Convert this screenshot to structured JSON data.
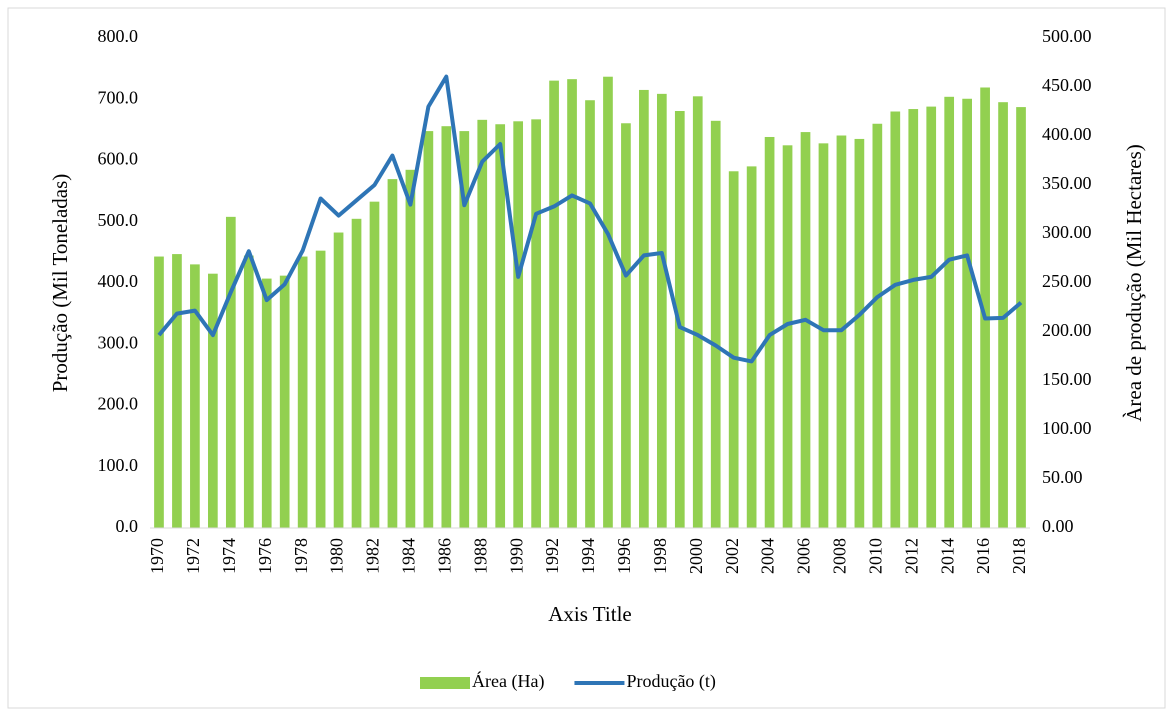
{
  "chart_data": {
    "type": "combo",
    "x_label": "Axis Title",
    "y_label": "Produção (Mil Toneladas)",
    "y2_label": "Àrea de produção (Mil Hectares)",
    "categories": [
      "1970",
      null,
      "1972",
      null,
      "1974",
      null,
      "1976",
      null,
      "1978",
      null,
      "1980",
      null,
      "1982",
      null,
      "1984",
      null,
      "1986",
      null,
      "1988",
      null,
      "1990",
      null,
      "1992",
      null,
      "1994",
      null,
      "1996",
      null,
      "1998",
      null,
      "2000",
      null,
      "2002",
      null,
      "2004",
      null,
      "2006",
      null,
      "2008",
      null,
      "2010",
      null,
      "2012",
      null,
      "2014",
      null,
      "2016",
      null,
      "2018"
    ],
    "series": [
      {
        "name": "Área (Ha)",
        "type": "bar",
        "axis": "y2",
        "color": "#92d050",
        "values": [
          277,
          279.5,
          269,
          259.5,
          317.5,
          278,
          254.5,
          257.5,
          277,
          283,
          301.5,
          315.5,
          333,
          356,
          365.5,
          405,
          410,
          405,
          416.5,
          412,
          415,
          417,
          456.5,
          458,
          436.5,
          460.5,
          413,
          447,
          443,
          425.5,
          440.5,
          415.5,
          364,
          369,
          399,
          390.5,
          404,
          392.5,
          400.5,
          397,
          412.5,
          425,
          427.5,
          430,
          440,
          438,
          449.5,
          434.5,
          429.5
        ]
      },
      {
        "name": "Produção (t)",
        "type": "line",
        "axis": "y",
        "color": "#2e75b6",
        "values": [
          315,
          350,
          355,
          315,
          385,
          452,
          372,
          398,
          453,
          538,
          510,
          535,
          560,
          608,
          528,
          688,
          737,
          527,
          598,
          627,
          410,
          513,
          525,
          543,
          530,
          480,
          412,
          445,
          449,
          328,
          315,
          298,
          278,
          272,
          315,
          333,
          340,
          323,
          323,
          348,
          377,
          397,
          405,
          410,
          438,
          445,
          342,
          343,
          368
        ]
      }
    ],
    "ylim": [
      0,
      800
    ],
    "yticks": [
      {
        "value": 0,
        "label": "0.0"
      },
      {
        "value": 100,
        "label": "100.0"
      },
      {
        "value": 200,
        "label": "200.0"
      },
      {
        "value": 300,
        "label": "300.0"
      },
      {
        "value": 400,
        "label": "400.0"
      },
      {
        "value": 500,
        "label": "500.0"
      },
      {
        "value": 600,
        "label": "600.0"
      },
      {
        "value": 700,
        "label": "700.0"
      },
      {
        "value": 800,
        "label": "800.0"
      }
    ],
    "y2lim": [
      0,
      500
    ],
    "y2ticks": [
      {
        "value": 0,
        "label": "0.00"
      },
      {
        "value": 50,
        "label": "50.00"
      },
      {
        "value": 100,
        "label": "100.00"
      },
      {
        "value": 150,
        "label": "150.00"
      },
      {
        "value": 200,
        "label": "200.00"
      },
      {
        "value": 250,
        "label": "250.00"
      },
      {
        "value": 300,
        "label": "300.00"
      },
      {
        "value": 350,
        "label": "350.00"
      },
      {
        "value": 400,
        "label": "400.00"
      },
      {
        "value": 450,
        "label": "450.00"
      },
      {
        "value": 500,
        "label": "500.00"
      }
    ],
    "grid": false,
    "legend": "bottom"
  }
}
